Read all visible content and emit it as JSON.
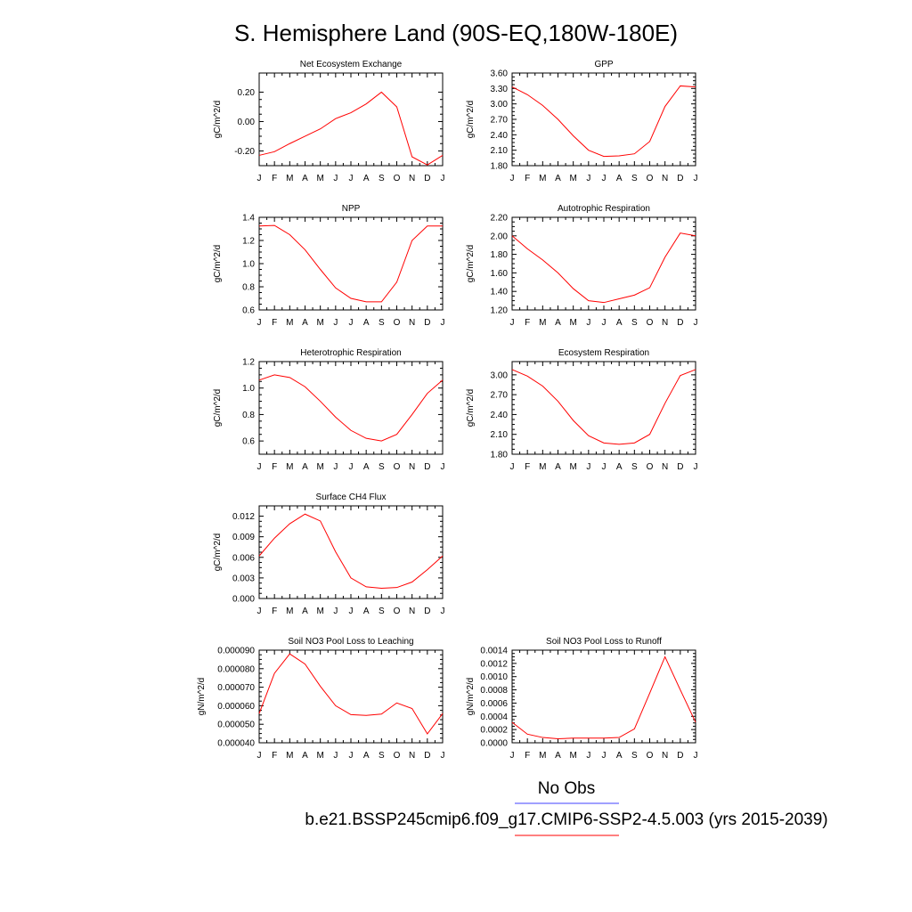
{
  "figure": {
    "title": "S. Hemisphere Land (90S-EQ,180W-180E)",
    "legend": [
      {
        "label": "No Obs",
        "color": "#4040ff"
      },
      {
        "label": "b.e21.BSSP245cmip6.f09_g17.CMIP6-SSP2-4.5.003 (yrs 2015-2039)",
        "color": "#ff0000"
      }
    ],
    "line_color": "#ff0000"
  },
  "chart_data": [
    {
      "type": "line",
      "title": "Net Ecosystem Exchange",
      "ylabel": "gC/m^2/d",
      "categories": [
        "J",
        "F",
        "M",
        "A",
        "M",
        "J",
        "J",
        "A",
        "S",
        "O",
        "N",
        "D",
        "J"
      ],
      "yticks": [
        "0.20",
        "0.00",
        "-0.20"
      ],
      "ytick_values": [
        0.2,
        0.0,
        -0.2
      ],
      "ylim": [
        -0.3,
        0.33
      ],
      "series": [
        {
          "values": [
            -0.23,
            -0.205,
            -0.15,
            -0.1,
            -0.05,
            0.02,
            0.06,
            0.12,
            0.2,
            0.1,
            -0.24,
            -0.295,
            -0.23
          ]
        }
      ]
    },
    {
      "type": "line",
      "title": "GPP",
      "ylabel": "gC/m^2/d",
      "categories": [
        "J",
        "F",
        "M",
        "A",
        "M",
        "J",
        "J",
        "A",
        "S",
        "O",
        "N",
        "D",
        "J"
      ],
      "yticks": [
        "3.60",
        "3.30",
        "3.00",
        "2.70",
        "2.40",
        "2.10",
        "1.80"
      ],
      "ytick_values": [
        3.6,
        3.3,
        3.0,
        2.7,
        2.4,
        2.1,
        1.8
      ],
      "ylim": [
        1.8,
        3.6
      ],
      "series": [
        {
          "values": [
            3.33,
            3.18,
            2.97,
            2.7,
            2.38,
            2.1,
            1.98,
            1.99,
            2.03,
            2.27,
            2.95,
            3.35,
            3.33
          ]
        }
      ]
    },
    {
      "type": "line",
      "title": "NPP",
      "ylabel": "gC/m^2/d",
      "categories": [
        "J",
        "F",
        "M",
        "A",
        "M",
        "J",
        "J",
        "A",
        "S",
        "O",
        "N",
        "D",
        "J"
      ],
      "yticks": [
        "1.4",
        "1.2",
        "1.0",
        "0.8",
        "0.6"
      ],
      "ytick_values": [
        1.4,
        1.2,
        1.0,
        0.8,
        0.6
      ],
      "ylim": [
        0.6,
        1.4
      ],
      "series": [
        {
          "values": [
            1.325,
            1.33,
            1.25,
            1.12,
            0.95,
            0.79,
            0.7,
            0.67,
            0.67,
            0.84,
            1.2,
            1.325,
            1.325
          ]
        }
      ]
    },
    {
      "type": "line",
      "title": "Autotrophic Respiration",
      "ylabel": "gC/m^2/d",
      "categories": [
        "J",
        "F",
        "M",
        "A",
        "M",
        "J",
        "J",
        "A",
        "S",
        "O",
        "N",
        "D",
        "J"
      ],
      "yticks": [
        "2.20",
        "2.00",
        "1.80",
        "1.60",
        "1.40",
        "1.20"
      ],
      "ytick_values": [
        2.2,
        2.0,
        1.8,
        1.6,
        1.4,
        1.2
      ],
      "ylim": [
        1.2,
        2.2
      ],
      "series": [
        {
          "values": [
            2.0,
            1.86,
            1.74,
            1.6,
            1.43,
            1.3,
            1.28,
            1.32,
            1.36,
            1.44,
            1.77,
            2.03,
            2.0
          ]
        }
      ]
    },
    {
      "type": "line",
      "title": "Heterotrophic Respiration",
      "ylabel": "gC/m^2/d",
      "categories": [
        "J",
        "F",
        "M",
        "A",
        "M",
        "J",
        "J",
        "A",
        "S",
        "O",
        "N",
        "D",
        "J"
      ],
      "yticks": [
        "1.2",
        "1.0",
        "0.8",
        "0.6"
      ],
      "ytick_values": [
        1.2,
        1.0,
        0.8,
        0.6
      ],
      "ylim": [
        0.5,
        1.2
      ],
      "series": [
        {
          "values": [
            1.06,
            1.1,
            1.08,
            1.01,
            0.9,
            0.78,
            0.68,
            0.62,
            0.6,
            0.65,
            0.8,
            0.96,
            1.06
          ]
        }
      ]
    },
    {
      "type": "line",
      "title": "Ecosystem Respiration",
      "ylabel": "gC/m^2/d",
      "categories": [
        "J",
        "F",
        "M",
        "A",
        "M",
        "J",
        "J",
        "A",
        "S",
        "O",
        "N",
        "D",
        "J"
      ],
      "yticks": [
        "3.00",
        "2.70",
        "2.40",
        "2.10",
        "1.80"
      ],
      "ytick_values": [
        3.0,
        2.7,
        2.4,
        2.1,
        1.8
      ],
      "ylim": [
        1.8,
        3.2
      ],
      "series": [
        {
          "values": [
            3.08,
            2.98,
            2.83,
            2.6,
            2.31,
            2.08,
            1.97,
            1.95,
            1.97,
            2.1,
            2.57,
            2.99,
            3.08
          ]
        }
      ]
    },
    {
      "type": "line",
      "title": "Surface CH4 Flux",
      "ylabel": "gC/m^2/d",
      "categories": [
        "J",
        "F",
        "M",
        "A",
        "M",
        "J",
        "J",
        "A",
        "S",
        "O",
        "N",
        "D",
        "J"
      ],
      "yticks": [
        "0.012",
        "0.009",
        "0.006",
        "0.003",
        "0.000"
      ],
      "ytick_values": [
        0.012,
        0.009,
        0.006,
        0.003,
        0.0
      ],
      "ylim": [
        0.0,
        0.0135
      ],
      "series": [
        {
          "values": [
            0.0062,
            0.0088,
            0.0109,
            0.0123,
            0.0113,
            0.0068,
            0.003,
            0.0017,
            0.0015,
            0.0016,
            0.0024,
            0.0042,
            0.0062
          ]
        }
      ]
    },
    {
      "type": "line",
      "title": "Soil NO3 Pool Loss to Leaching",
      "ylabel": "gN/m^2/d",
      "categories": [
        "J",
        "F",
        "M",
        "A",
        "M",
        "J",
        "J",
        "A",
        "S",
        "O",
        "N",
        "D",
        "J"
      ],
      "yticks": [
        "0.000090",
        "0.000080",
        "0.000070",
        "0.000060",
        "0.000050",
        "0.000040"
      ],
      "ytick_values": [
        9e-05,
        8e-05,
        7e-05,
        6e-05,
        5e-05,
        4e-05
      ],
      "ylim": [
        4e-05,
        9e-05
      ],
      "series": [
        {
          "values": [
            5.58e-05,
            7.75e-05,
            8.8e-05,
            8.25e-05,
            7.05e-05,
            6e-05,
            5.52e-05,
            5.48e-05,
            5.55e-05,
            6.15e-05,
            5.85e-05,
            4.48e-05,
            5.58e-05
          ]
        }
      ]
    },
    {
      "type": "line",
      "title": "Soil NO3 Pool Loss to Runoff",
      "ylabel": "gN/m^2/d",
      "categories": [
        "J",
        "F",
        "M",
        "A",
        "M",
        "J",
        "J",
        "A",
        "S",
        "O",
        "N",
        "D",
        "J"
      ],
      "yticks": [
        "0.0014",
        "0.0012",
        "0.0010",
        "0.0008",
        "0.0006",
        "0.0004",
        "0.0002",
        "0.0000"
      ],
      "ytick_values": [
        0.0014,
        0.0012,
        0.001,
        0.0008,
        0.0006,
        0.0004,
        0.0002,
        0.0
      ],
      "ylim": [
        0.0,
        0.0014
      ],
      "series": [
        {
          "values": [
            0.00031,
            0.00013,
            8e-05,
            6e-05,
            7e-05,
            7e-05,
            7e-05,
            8e-05,
            0.00021,
            0.00075,
            0.0013,
            0.0008,
            0.00031
          ]
        }
      ]
    }
  ]
}
